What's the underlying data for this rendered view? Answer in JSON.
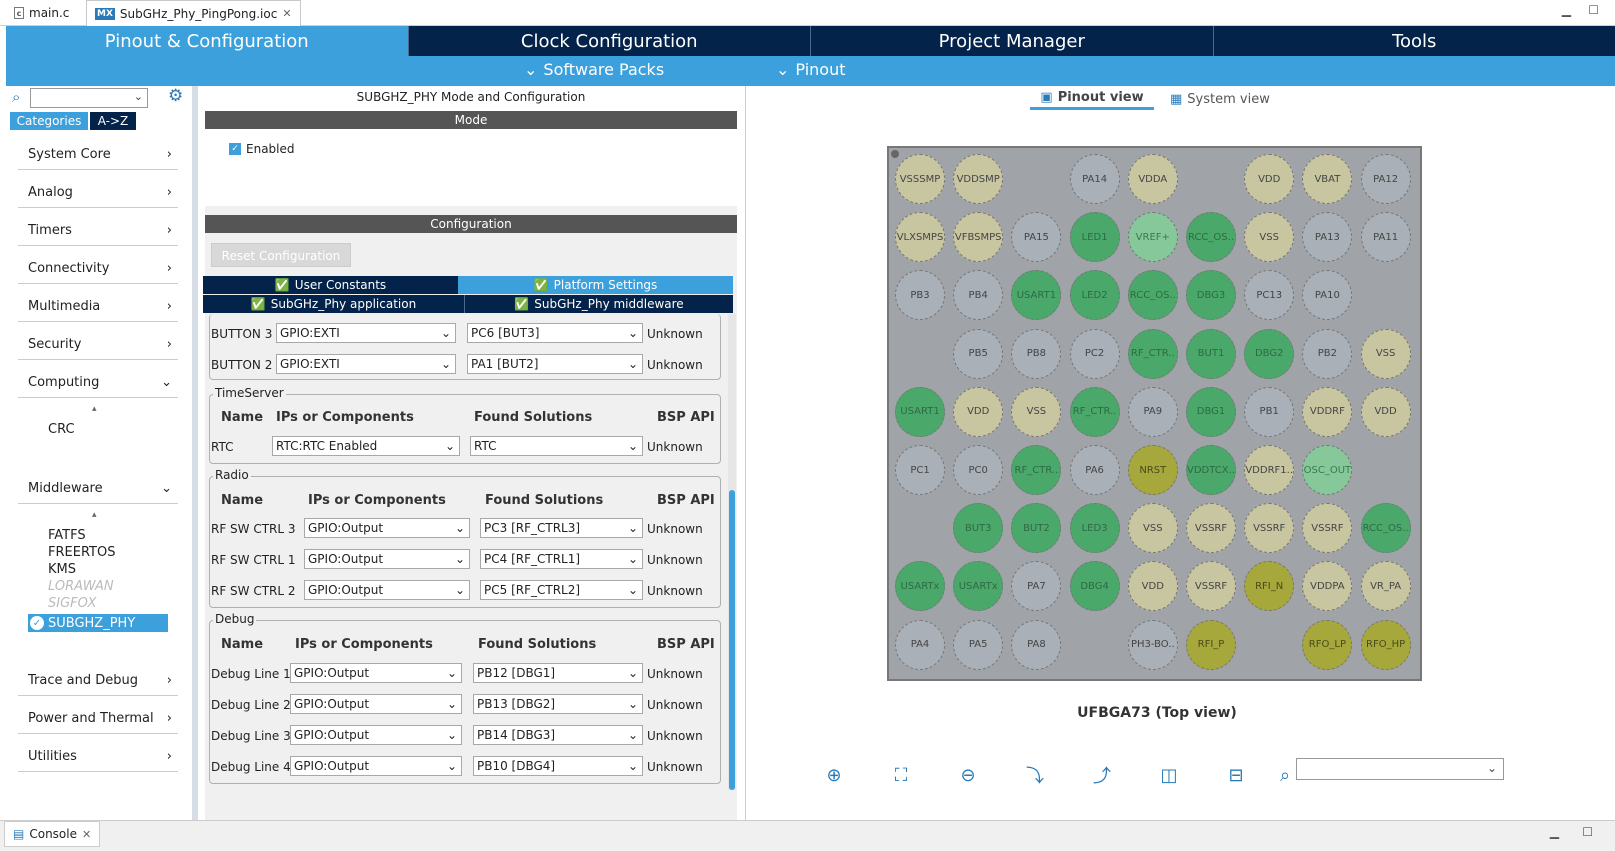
{
  "editor_tabs": [
    {
      "label": "main.c"
    },
    {
      "label": "SubGHz_Phy_PingPong.ioc"
    }
  ],
  "topnav": [
    "Pinout & Configuration",
    "Clock Configuration",
    "Project Manager",
    "Tools"
  ],
  "subnav": {
    "software_packs": "Software Packs",
    "pinout": "Pinout"
  },
  "left": {
    "tabs": {
      "categories": "Categories",
      "az": "A->Z"
    },
    "categories": [
      "System Core",
      "Analog",
      "Timers",
      "Connectivity",
      "Multimedia",
      "Security",
      "Computing"
    ],
    "computing_items": [
      "CRC"
    ],
    "middleware_label": "Middleware",
    "middleware_items": [
      "FATFS",
      "FREERTOS",
      "KMS",
      "LORAWAN",
      "SIGFOX",
      "SUBGHZ_PHY"
    ],
    "bottom_categories": [
      "Trace and Debug",
      "Power and Thermal",
      "Utilities"
    ]
  },
  "mid": {
    "title": "SUBGHZ_PHY Mode and Configuration",
    "mode_header": "Mode",
    "enabled_label": "Enabled",
    "config_header": "Configuration",
    "reset_button": "Reset Configuration",
    "tabs": [
      "User Constants",
      "Platform Settings",
      "SubGHz_Phy application",
      "SubGHz_Phy middleware"
    ],
    "col_headers": {
      "name": "Name",
      "ips": "IPs or Components",
      "found": "Found Solutions",
      "bsp": "BSP API"
    },
    "buttons_rows": [
      {
        "name": "BUTTON 3",
        "ip": "GPIO:EXTI",
        "found": "PC6 [BUT3]",
        "bsp": "Unknown"
      },
      {
        "name": "BUTTON 2",
        "ip": "GPIO:EXTI",
        "found": "PA1 [BUT2]",
        "bsp": "Unknown"
      }
    ],
    "timeserver": {
      "title": "TimeServer",
      "rows": [
        {
          "name": "RTC",
          "ip": "RTC:RTC Enabled",
          "found": "RTC",
          "bsp": "Unknown"
        }
      ]
    },
    "radio": {
      "title": "Radio",
      "rows": [
        {
          "name": "RF SW CTRL 3",
          "ip": "GPIO:Output",
          "found": "PC3 [RF_CTRL3]",
          "bsp": "Unknown"
        },
        {
          "name": "RF SW CTRL 1",
          "ip": "GPIO:Output",
          "found": "PC4 [RF_CTRL1]",
          "bsp": "Unknown"
        },
        {
          "name": "RF SW CTRL 2",
          "ip": "GPIO:Output",
          "found": "PC5 [RF_CTRL2]",
          "bsp": "Unknown"
        }
      ]
    },
    "debug": {
      "title": "Debug",
      "rows": [
        {
          "name": "Debug Line 1",
          "ip": "GPIO:Output",
          "found": "PB12 [DBG1]",
          "bsp": "Unknown"
        },
        {
          "name": "Debug Line 2",
          "ip": "GPIO:Output",
          "found": "PB13 [DBG2]",
          "bsp": "Unknown"
        },
        {
          "name": "Debug Line 3",
          "ip": "GPIO:Output",
          "found": "PB14 [DBG3]",
          "bsp": "Unknown"
        },
        {
          "name": "Debug Line 4",
          "ip": "GPIO:Output",
          "found": "PB10 [DBG4]",
          "bsp": "Unknown"
        }
      ]
    }
  },
  "right": {
    "tabs": {
      "pinout": "Pinout view",
      "system": "System view"
    },
    "package_label": "UFBGA73 (Top view)",
    "pins": [
      [
        "VSSSMP",
        "VDDSMP",
        "",
        "PA14",
        "VDDA",
        "",
        "VDD",
        "VBAT",
        "PA12"
      ],
      [
        "VLXSMPS",
        "VFBSMPS",
        "PA15",
        "LED1",
        "VREF+",
        "RCC_OS..",
        "VSS",
        "PA13",
        "PA11"
      ],
      [
        "PB3",
        "PB4",
        "USART1",
        "LED2",
        "RCC_OS..",
        "DBG3",
        "PC13",
        "PA10",
        ""
      ],
      [
        "",
        "PB5",
        "PB8",
        "PC2",
        "RF_CTR..",
        "BUT1",
        "DBG2",
        "PB2",
        "VSS"
      ],
      [
        "USART1",
        "VDD",
        "VSS",
        "RF_CTR..",
        "PA9",
        "DBG1",
        "PB1",
        "VDDRF",
        "VDD"
      ],
      [
        "PC1",
        "PC0",
        "RF_CTR..",
        "PA6",
        "NRST",
        "VDDTCX..",
        "VDDRF1..",
        "OSC_OUT",
        ""
      ],
      [
        "",
        "BUT3",
        "BUT2",
        "LED3",
        "VSS",
        "VSSRF",
        "VSSRF",
        "VSSRF",
        "RCC_OS.."
      ],
      [
        "USARTx",
        "USARTx",
        "PA7",
        "DBG4",
        "VDD",
        "VSSRF",
        "RFI_N",
        "VDDPA",
        "VR_PA"
      ],
      [
        "PA4",
        "PA5",
        "PA8",
        "",
        "PH3-BO..",
        "RFI_P",
        "",
        "RFO_LP",
        "RFO_HP"
      ]
    ]
  },
  "console": {
    "label": "Console"
  }
}
